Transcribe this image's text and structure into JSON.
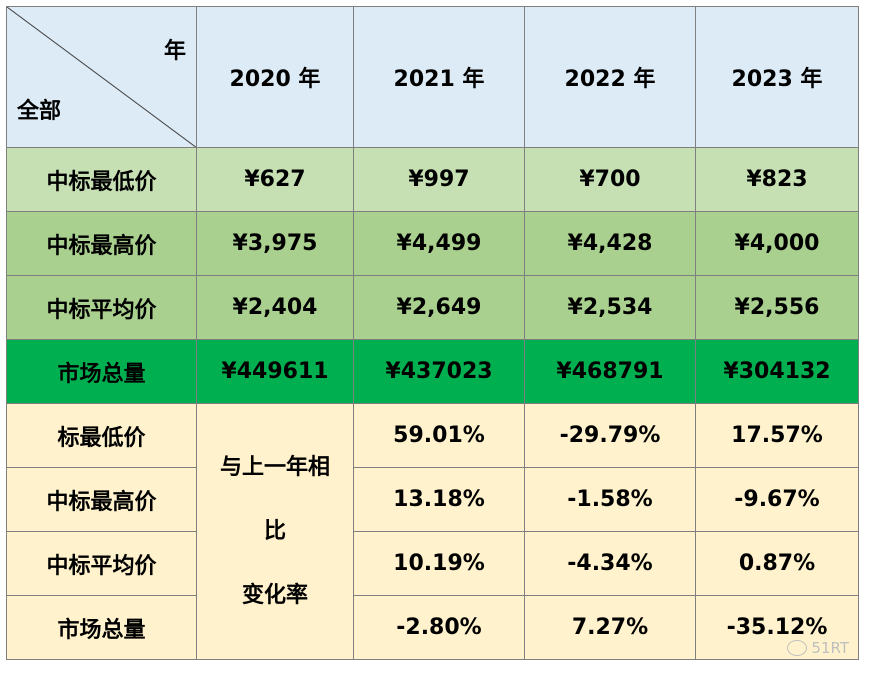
{
  "header": {
    "corner_top": "年",
    "corner_bottom": "全部",
    "years": [
      "2020 年",
      "2021 年",
      "2022 年",
      "2023 年"
    ]
  },
  "price_rows": [
    {
      "label": "中标最低价",
      "values": [
        "¥627",
        "¥997",
        "¥700",
        "¥823"
      ]
    },
    {
      "label": "中标最高价",
      "values": [
        "¥3,975",
        "¥4,499",
        "¥4,428",
        "¥4,000"
      ]
    },
    {
      "label": "中标平均价",
      "values": [
        "¥2,404",
        "¥2,649",
        "¥2,534",
        "¥2,556"
      ]
    },
    {
      "label": "市场总量",
      "values": [
        "¥449611",
        "¥437023",
        "¥468791",
        "¥304132"
      ]
    }
  ],
  "comparison": {
    "merged_label_lines": [
      "与上一年相",
      "比",
      "变化率"
    ],
    "rows": [
      {
        "label": "标最低价",
        "values": [
          "59.01%",
          "-29.79%",
          "17.57%"
        ]
      },
      {
        "label": "中标最高价",
        "values": [
          "13.18%",
          "-1.58%",
          "-9.67%"
        ]
      },
      {
        "label": "中标平均价",
        "values": [
          "10.19%",
          "-4.34%",
          "0.87%"
        ]
      },
      {
        "label": "市场总量",
        "values": [
          "-2.80%",
          "7.27%",
          "-35.12%"
        ]
      }
    ]
  },
  "watermark": {
    "text": "51RT",
    "icon": "chat-bubble-icon"
  }
}
